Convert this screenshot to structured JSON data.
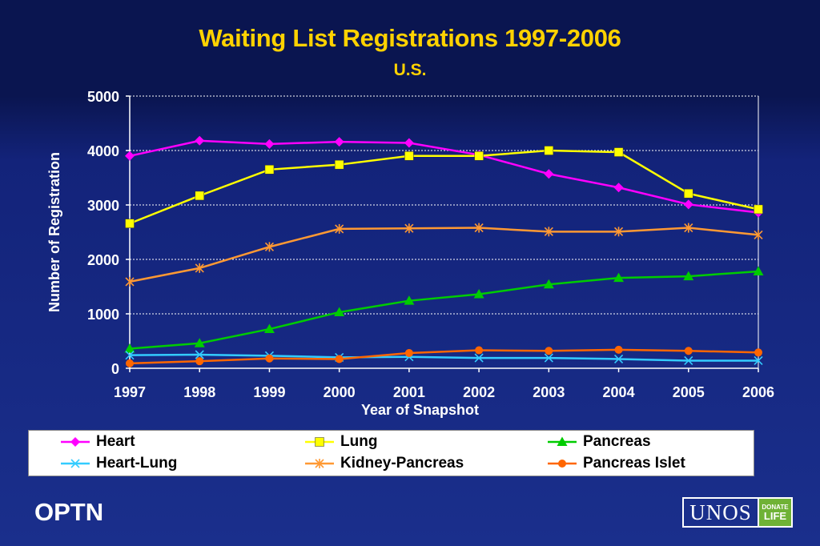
{
  "header": {
    "title": "Waiting List Registrations 1997-2006",
    "subtitle": "U.S."
  },
  "chart_data": {
    "type": "line",
    "title": "Waiting List Registrations 1997-2006",
    "subtitle": "U.S.",
    "xlabel": "Year of Snapshot",
    "ylabel": "Number of Registration",
    "x": [
      "1997",
      "1998",
      "1999",
      "2000",
      "2001",
      "2002",
      "2003",
      "2004",
      "2005",
      "2006"
    ],
    "ylim": [
      0,
      5000
    ],
    "yticks": [
      0,
      1000,
      2000,
      3000,
      4000,
      5000
    ],
    "grid": "horizontal dotted",
    "legend": "bottom",
    "series": [
      {
        "name": "Heart",
        "color": "#ff00ff",
        "marker": "diamond",
        "values": [
          3900,
          4180,
          4120,
          4160,
          4140,
          3920,
          3570,
          3320,
          3010,
          2860
        ]
      },
      {
        "name": "Lung",
        "color": "#ffff00",
        "marker": "square",
        "values": [
          2660,
          3170,
          3650,
          3740,
          3900,
          3900,
          4000,
          3970,
          3210,
          2920
        ]
      },
      {
        "name": "Pancreas",
        "color": "#00cc00",
        "marker": "triangle",
        "values": [
          360,
          460,
          720,
          1030,
          1240,
          1360,
          1540,
          1660,
          1690,
          1780
        ]
      },
      {
        "name": "Heart-Lung",
        "color": "#33ccff",
        "marker": "x",
        "values": [
          240,
          250,
          230,
          200,
          210,
          190,
          190,
          170,
          140,
          140
        ]
      },
      {
        "name": "Kidney-Pancreas",
        "color": "#ff9933",
        "marker": "star",
        "values": [
          1590,
          1840,
          2230,
          2560,
          2570,
          2580,
          2510,
          2510,
          2580,
          2450
        ]
      },
      {
        "name": "Pancreas Islet",
        "color": "#ff6600",
        "marker": "circle",
        "values": [
          90,
          130,
          180,
          170,
          280,
          330,
          320,
          340,
          320,
          290
        ]
      }
    ]
  },
  "footer": {
    "brand": "OPTN",
    "logo_text": "UNOS",
    "logo_badge_top": "DONATE",
    "logo_badge_bottom": "LIFE"
  }
}
